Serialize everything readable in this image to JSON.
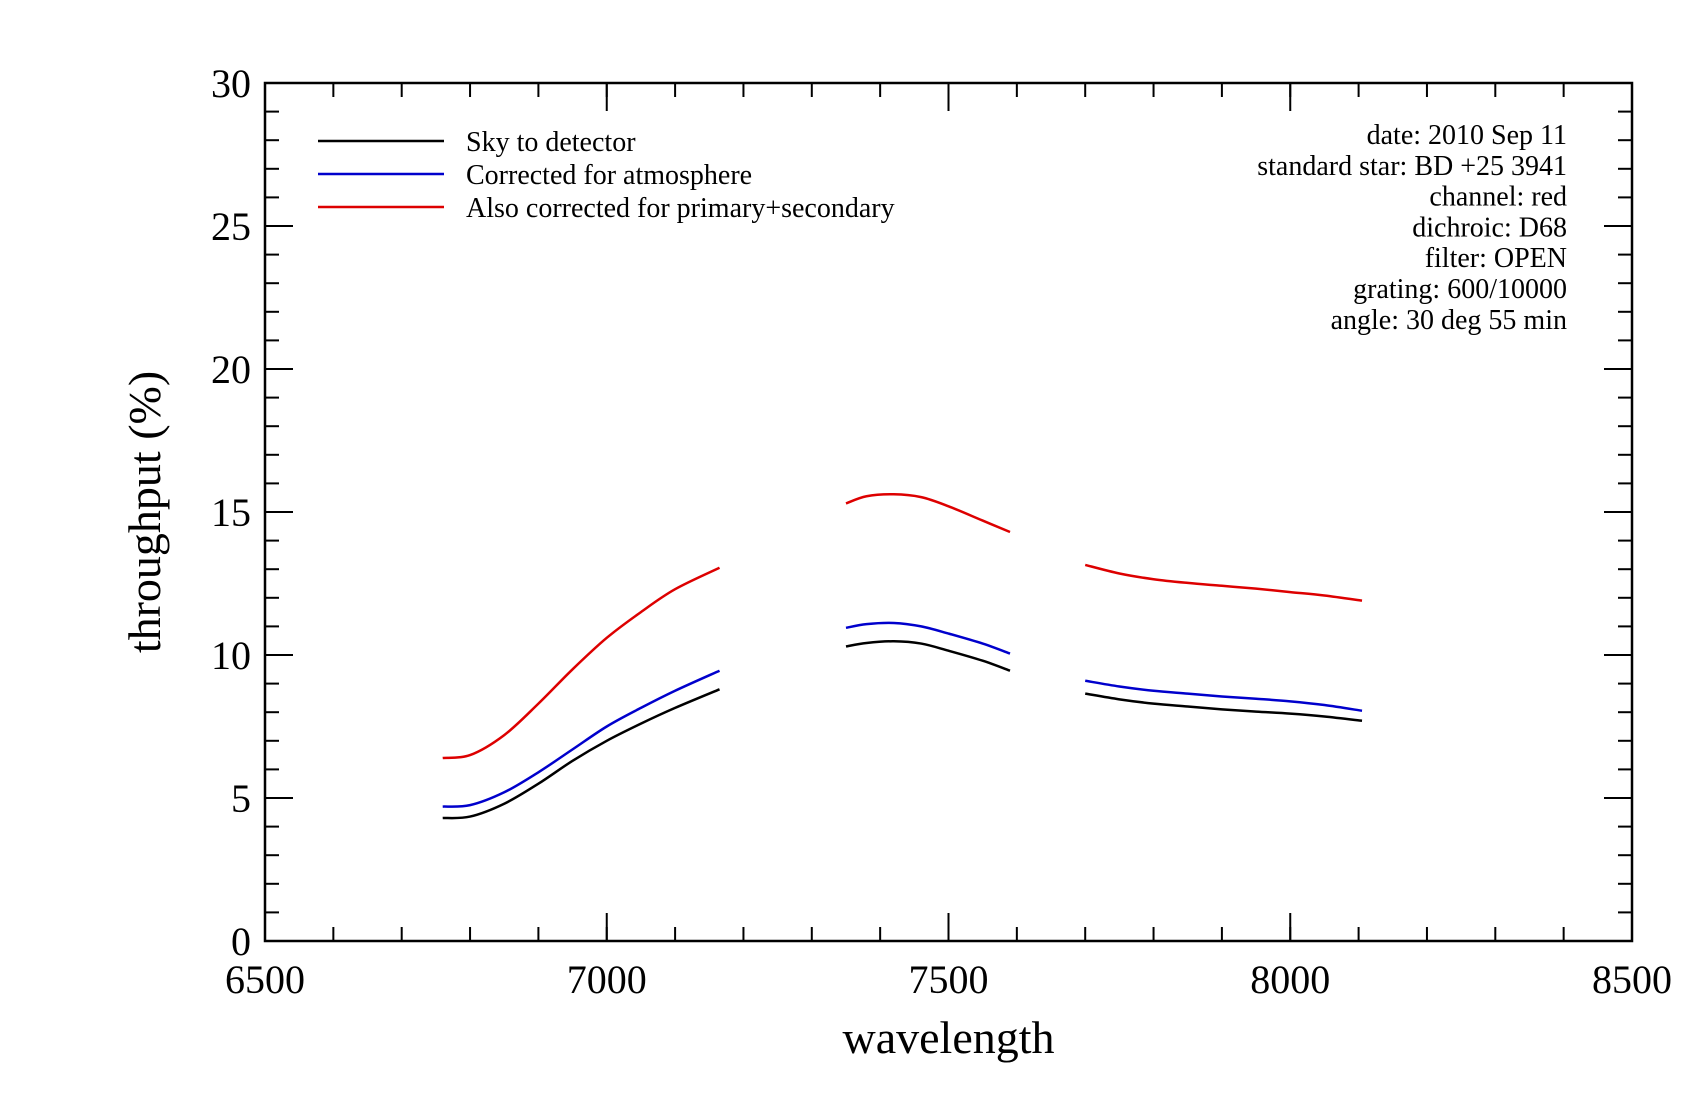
{
  "chart_data": {
    "type": "line",
    "title": "",
    "xlabel": "wavelength",
    "ylabel": "throughput (%)",
    "xlim": [
      6500,
      8500
    ],
    "ylim": [
      0,
      30
    ],
    "x_ticks": [
      6500,
      7000,
      7500,
      8000,
      8500
    ],
    "y_ticks": [
      0,
      5,
      10,
      15,
      20,
      25,
      30
    ],
    "x_minor_step": 100,
    "y_minor_step": 1,
    "grid": false,
    "legend_position": "top-left",
    "series": [
      {
        "name": "Sky to detector",
        "color": "#000000",
        "segments": [
          {
            "x": [
              6760,
              6800,
              6850,
              6900,
              6950,
              7000,
              7050,
              7100,
              7165
            ],
            "y": [
              4.3,
              4.35,
              4.8,
              5.5,
              6.3,
              7.0,
              7.6,
              8.15,
              8.8
            ]
          },
          {
            "x": [
              7350,
              7380,
              7420,
              7460,
              7500,
              7550,
              7590
            ],
            "y": [
              10.3,
              10.42,
              10.48,
              10.4,
              10.15,
              9.8,
              9.45
            ]
          },
          {
            "x": [
              7700,
              7750,
              7800,
              7850,
              7900,
              7950,
              8000,
              8050,
              8105
            ],
            "y": [
              8.65,
              8.45,
              8.3,
              8.2,
              8.1,
              8.02,
              7.95,
              7.85,
              7.7
            ]
          }
        ]
      },
      {
        "name": "Corrected for atmosphere",
        "color": "#0000cc",
        "segments": [
          {
            "x": [
              6760,
              6800,
              6850,
              6900,
              6950,
              7000,
              7050,
              7100,
              7165
            ],
            "y": [
              4.7,
              4.75,
              5.2,
              5.9,
              6.7,
              7.5,
              8.15,
              8.75,
              9.45
            ]
          },
          {
            "x": [
              7350,
              7380,
              7420,
              7460,
              7500,
              7550,
              7590
            ],
            "y": [
              10.95,
              11.08,
              11.12,
              11.0,
              10.75,
              10.4,
              10.05
            ]
          },
          {
            "x": [
              7700,
              7750,
              7800,
              7850,
              7900,
              7950,
              8000,
              8050,
              8105
            ],
            "y": [
              9.1,
              8.9,
              8.75,
              8.65,
              8.55,
              8.47,
              8.38,
              8.25,
              8.05
            ]
          }
        ]
      },
      {
        "name": "Also corrected for primary+secondary",
        "color": "#dd0000",
        "segments": [
          {
            "x": [
              6760,
              6800,
              6850,
              6900,
              6950,
              7000,
              7050,
              7100,
              7165
            ],
            "y": [
              6.4,
              6.5,
              7.2,
              8.3,
              9.5,
              10.6,
              11.5,
              12.3,
              13.05
            ]
          },
          {
            "x": [
              7350,
              7380,
              7420,
              7460,
              7500,
              7550,
              7590
            ],
            "y": [
              15.3,
              15.55,
              15.62,
              15.52,
              15.2,
              14.7,
              14.3
            ]
          },
          {
            "x": [
              7700,
              7750,
              7800,
              7850,
              7900,
              7950,
              8000,
              8050,
              8105
            ],
            "y": [
              13.15,
              12.85,
              12.65,
              12.52,
              12.42,
              12.32,
              12.2,
              12.08,
              11.9
            ]
          }
        ]
      }
    ],
    "annotations": [
      "date: 2010 Sep 11",
      "standard star: BD +25 3941",
      "channel: red",
      "dichroic: D68",
      "filter: OPEN",
      "grating: 600/10000",
      "angle: 30 deg 55 min"
    ],
    "annotation_position": "top-right"
  }
}
